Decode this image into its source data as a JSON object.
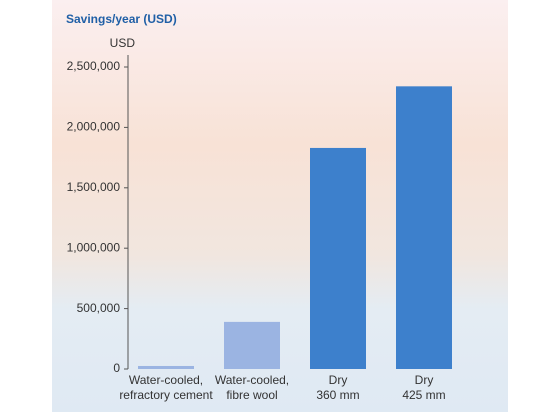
{
  "chart_data": {
    "type": "bar",
    "title": "Savings/year (USD)",
    "y_label": "USD",
    "categories": [
      [
        "Water-cooled,",
        "refractory cement"
      ],
      [
        "Water-cooled,",
        "fibre wool"
      ],
      [
        "Dry",
        "360 mm"
      ],
      [
        "Dry",
        "425 mm"
      ]
    ],
    "values": [
      25000,
      390000,
      1830000,
      2340000
    ],
    "colors": [
      "#9bb4e2",
      "#9bb4e2",
      "#3d80cc",
      "#3d80cc"
    ],
    "ylim": [
      0,
      2500000
    ],
    "yticks": [
      0,
      {
        "value": 500000,
        "label": "500,000"
      },
      {
        "value": 1000000,
        "label": "1,000,000"
      },
      {
        "value": 1500000,
        "label": "1,500,000"
      },
      {
        "value": 2000000,
        "label": "2,000,000"
      },
      {
        "value": 2500000,
        "label": "2,500,000"
      }
    ],
    "grid": false
  }
}
